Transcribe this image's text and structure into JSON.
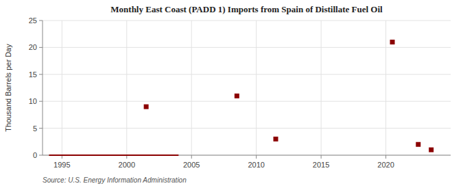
{
  "chart_data": {
    "type": "scatter",
    "title": "Monthly East Coast (PADD 1) Imports from Spain of Distillate Fuel Oil",
    "y_label": "Thousand Barrels per Day",
    "source": "Source: U.S. Energy Information Administration",
    "xlim": [
      1993.5,
      2025
    ],
    "xticks": [
      1995,
      2000,
      2005,
      2010,
      2015,
      2020
    ],
    "ylim": [
      0,
      25
    ],
    "yticks": [
      0,
      5,
      10,
      15,
      20,
      25
    ],
    "grid": true,
    "series": [
      {
        "type": "line",
        "color": "#8b0000",
        "x": [
          1994,
          2004
        ],
        "values": [
          0,
          0
        ]
      },
      {
        "type": "scatter",
        "color": "#8b0000",
        "marker": "square",
        "x": [
          2001.5,
          2008.5,
          2011.5,
          2020.5,
          2022.5,
          2023.5
        ],
        "values": [
          9,
          11,
          3,
          21,
          2,
          1
        ]
      }
    ]
  }
}
